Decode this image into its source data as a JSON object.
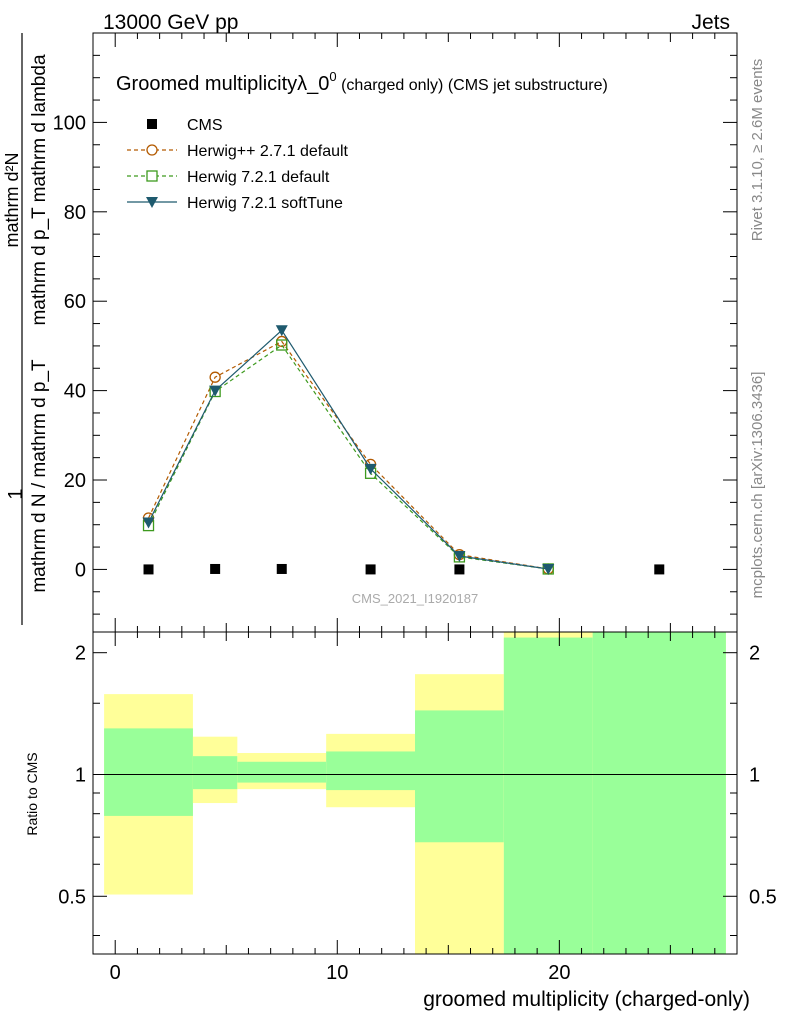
{
  "header": {
    "energy_label": "13000 GeV pp",
    "process_label": "Jets"
  },
  "side_labels": {
    "rivet": "Rivet 3.1.10, ≥ 2.6M events",
    "mcplots": "mcplots.cern.ch [arXiv:1306.3436]"
  },
  "watermark": "CMS_2021_I1920187",
  "colors": {
    "cms": "#000000",
    "herwigpp": "#b35a00",
    "herwig721": "#3d9a1e",
    "softtune": "#1e5a6e",
    "band_yellow": "#ffff99",
    "band_green": "#99ff99"
  },
  "chart_data": [
    {
      "type": "line",
      "panel": "main",
      "title_main": "Groomed multiplicityλ_0",
      "title_sup": "0",
      "title_suffix": " (charged only) (CMS jet substructure)",
      "ylabel": "1 / mathrm d N / mathrm d p_T mathrm d^2N / mathrm d p_T mathrm d lambda",
      "ylabel_top": "mathrm d²N",
      "ylabel_mid": "mathrm d p_T mathrm d lambda",
      "ylabel_num": "1",
      "ylabel_den": "mathrm d N / mathrm d p_T",
      "ylim": [
        -14,
        120
      ],
      "xlim": [
        -1,
        28
      ],
      "yticks": [
        0,
        20,
        40,
        60,
        80,
        100
      ],
      "yticklabels": [
        "0",
        "20",
        "40",
        "60",
        "80",
        "100"
      ],
      "series": [
        {
          "name": "CMS",
          "style": "square-filled",
          "x": [
            1.5,
            4.5,
            7.5,
            11.5,
            15.5,
            24.5
          ],
          "y": [
            0.0,
            0.1,
            0.1,
            0.0,
            0.0,
            0.0
          ]
        },
        {
          "name": "Herwig++ 2.7.1 default",
          "style": "circle-open-dashed",
          "x": [
            1.5,
            4.5,
            7.5,
            11.5,
            15.5,
            19.5
          ],
          "y": [
            11.5,
            43.0,
            51.0,
            23.5,
            3.3,
            0.1
          ]
        },
        {
          "name": "Herwig 7.2.1 default",
          "style": "square-open-dashed",
          "x": [
            1.5,
            4.5,
            7.5,
            11.5,
            15.5,
            19.5
          ],
          "y": [
            9.8,
            39.8,
            50.2,
            21.5,
            2.8,
            0.1
          ]
        },
        {
          "name": "Herwig 7.2.1 softTune",
          "style": "triangle-down-solid",
          "x": [
            1.5,
            4.5,
            7.5,
            11.5,
            15.5,
            19.5
          ],
          "y": [
            10.5,
            40.0,
            53.5,
            22.5,
            3.0,
            0.1
          ]
        }
      ]
    },
    {
      "type": "area",
      "panel": "ratio",
      "ylabel": "Ratio to CMS",
      "xlabel": "groomed multiplicity (charged-only)",
      "xlim": [
        -1,
        28
      ],
      "ylim": [
        0.36,
        2.25
      ],
      "xticks": [
        0,
        10,
        20
      ],
      "xticklabels": [
        "0",
        "10",
        "20"
      ],
      "yticks": [
        0.5,
        1,
        2
      ],
      "yticklabels": [
        "0.5",
        "1",
        "2"
      ],
      "reference_line": 1,
      "bins": [
        {
          "x0": -0.5,
          "x1": 3.5,
          "yellow": [
            0.505,
            1.58
          ],
          "green": [
            0.79,
            1.3
          ]
        },
        {
          "x0": 3.5,
          "x1": 5.5,
          "yellow": [
            0.85,
            1.24
          ],
          "green": [
            0.92,
            1.11
          ]
        },
        {
          "x0": 5.5,
          "x1": 9.5,
          "yellow": [
            0.92,
            1.13
          ],
          "green": [
            0.955,
            1.075
          ]
        },
        {
          "x0": 9.5,
          "x1": 13.5,
          "yellow": [
            0.83,
            1.26
          ],
          "green": [
            0.915,
            1.14
          ]
        },
        {
          "x0": 13.5,
          "x1": 17.5,
          "yellow": [
            0.36,
            1.77
          ],
          "green": [
            0.68,
            1.44
          ]
        },
        {
          "x0": 17.5,
          "x1": 21.5,
          "yellow": [
            0.36,
            2.25
          ],
          "green": [
            0.36,
            2.18
          ]
        },
        {
          "x0": 21.5,
          "x1": 27.5,
          "yellow": [
            0.36,
            2.25
          ],
          "green": [
            0.36,
            2.25
          ]
        }
      ]
    }
  ]
}
